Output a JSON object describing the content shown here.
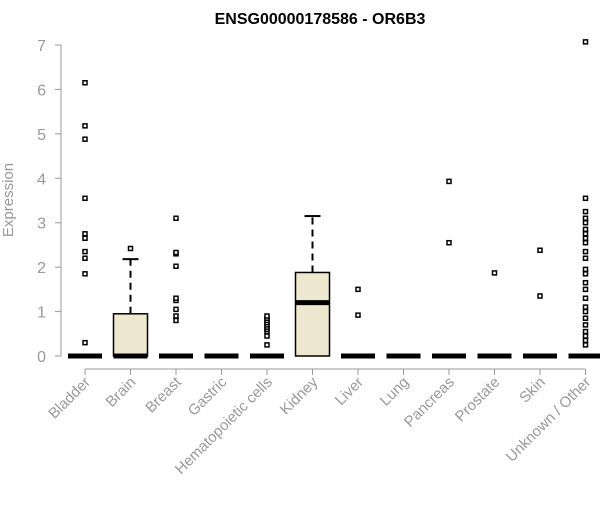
{
  "chart_data": {
    "type": "box",
    "title": "ENSG00000178586 - OR6B3",
    "ylabel": "Expression",
    "xlabel": "",
    "ylim": [
      0,
      7
    ],
    "yticks": [
      0,
      1,
      2,
      3,
      4,
      5,
      6,
      7
    ],
    "grid": false,
    "legend": "none",
    "colors": {
      "box_fill": "#efe8d0",
      "stroke": "#000000",
      "axis": "#999999",
      "tick_text": "#999999",
      "title": "#000000"
    },
    "categories": [
      "Bladder",
      "Brain",
      "Breast",
      "Gastric",
      "Hematopoietic cells",
      "Kidney",
      "Liver",
      "Lung",
      "Pancreas",
      "Prostate",
      "Skin",
      "Unknown / Other"
    ],
    "boxes": [
      {
        "category": "Bladder",
        "q1": 0,
        "median": 0,
        "q3": 0,
        "whisker_low": 0,
        "whisker_high": 0,
        "outliers": [
          0.3,
          1.85,
          2.2,
          2.35,
          2.65,
          2.75,
          3.55,
          4.88,
          5.18,
          6.15
        ]
      },
      {
        "category": "Brain",
        "q1": 0,
        "median": 0,
        "q3": 0.95,
        "whisker_low": 0,
        "whisker_high": 2.18,
        "outliers": [
          2.42
        ]
      },
      {
        "category": "Breast",
        "q1": 0,
        "median": 0,
        "q3": 0,
        "whisker_low": 0,
        "whisker_high": 0,
        "outliers": [
          0.8,
          0.9,
          1.05,
          1.25,
          1.3,
          2.02,
          2.3,
          2.33,
          3.1
        ]
      },
      {
        "category": "Gastric",
        "q1": 0,
        "median": 0,
        "q3": 0,
        "whisker_low": 0,
        "whisker_high": 0,
        "outliers": []
      },
      {
        "category": "Hematopoietic cells",
        "q1": 0,
        "median": 0,
        "q3": 0,
        "whisker_low": 0,
        "whisker_high": 0,
        "outliers": [
          0.25,
          0.45,
          0.55,
          0.6,
          0.65,
          0.7,
          0.75,
          0.8,
          0.85,
          0.9
        ]
      },
      {
        "category": "Kidney",
        "q1": 0,
        "median": 1.2,
        "q3": 1.88,
        "whisker_low": 0,
        "whisker_high": 3.15,
        "outliers": []
      },
      {
        "category": "Liver",
        "q1": 0,
        "median": 0,
        "q3": 0,
        "whisker_low": 0,
        "whisker_high": 0,
        "outliers": [
          0.92,
          1.5
        ]
      },
      {
        "category": "Lung",
        "q1": 0,
        "median": 0,
        "q3": 0,
        "whisker_low": 0,
        "whisker_high": 0,
        "outliers": []
      },
      {
        "category": "Pancreas",
        "q1": 0,
        "median": 0,
        "q3": 0,
        "whisker_low": 0,
        "whisker_high": 0,
        "outliers": [
          2.55,
          3.93
        ]
      },
      {
        "category": "Prostate",
        "q1": 0,
        "median": 0,
        "q3": 0,
        "whisker_low": 0,
        "whisker_high": 0,
        "outliers": [
          1.87
        ]
      },
      {
        "category": "Skin",
        "q1": 0,
        "median": 0,
        "q3": 0,
        "whisker_low": 0,
        "whisker_high": 0,
        "outliers": [
          1.35,
          2.38
        ]
      },
      {
        "category": "Unknown / Other",
        "q1": 0,
        "median": 0,
        "q3": 0,
        "whisker_low": 0,
        "whisker_high": 0,
        "outliers": [
          0.25,
          0.35,
          0.45,
          0.55,
          0.7,
          0.85,
          1.0,
          1.1,
          1.3,
          1.5,
          1.65,
          1.85,
          1.95,
          2.2,
          2.35,
          2.55,
          2.65,
          2.75,
          2.85,
          3.0,
          3.1,
          3.25,
          3.55,
          7.07
        ]
      }
    ]
  }
}
